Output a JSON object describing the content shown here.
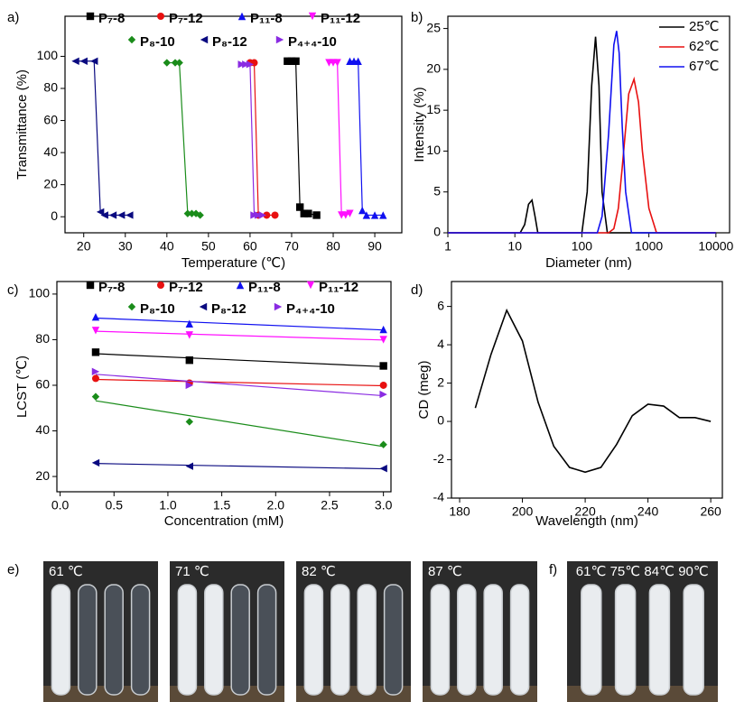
{
  "chart_data": [
    {
      "type": "line",
      "panel_label": "a)",
      "y_title": "Transmittance  (%)",
      "x_title": "Temperature (℃)",
      "xlim": [
        15.5,
        96.5
      ],
      "xticks": [
        20,
        30,
        40,
        50,
        60,
        70,
        80,
        90
      ],
      "ylim": [
        -10,
        125
      ],
      "yticks": [
        0,
        20,
        40,
        60,
        80,
        100
      ],
      "legend": "top",
      "series": [
        {
          "name": "P₇-8",
          "color": "#000000",
          "marker": "square",
          "x": [
            69,
            70,
            71,
            72,
            73,
            74,
            76
          ],
          "values": [
            97,
            97,
            97,
            6,
            2,
            2,
            1
          ]
        },
        {
          "name": "P₇-12",
          "color": "#e81010",
          "marker": "circle",
          "x": [
            60,
            61,
            62,
            64,
            66
          ],
          "values": [
            96,
            96,
            1,
            1,
            1
          ]
        },
        {
          "name": "P₁₁-8",
          "color": "#1010f0",
          "marker": "up",
          "x": [
            84,
            85,
            86,
            87,
            88,
            90,
            92
          ],
          "values": [
            97,
            97,
            97,
            4,
            1,
            1,
            1
          ]
        },
        {
          "name": "P₁₁-12",
          "color": "#ff10ff",
          "marker": "down",
          "x": [
            79,
            80,
            81,
            82,
            83,
            84
          ],
          "values": [
            96,
            96,
            96,
            1,
            1,
            2
          ]
        },
        {
          "name": "P₈-10",
          "color": "#1a8c1a",
          "marker": "diamond",
          "x": [
            40,
            42,
            43,
            45,
            46,
            47,
            48
          ],
          "values": [
            96,
            96,
            96,
            2,
            2,
            2,
            1
          ]
        },
        {
          "name": "P₈-12",
          "color": "#0a0a80",
          "marker": "left",
          "x": [
            18,
            20,
            22.5,
            24,
            25,
            27,
            29,
            31
          ],
          "values": [
            97,
            97,
            97,
            3,
            1,
            1,
            1,
            1
          ]
        },
        {
          "name": "P₄₊₄-10",
          "color": "#8a2be2",
          "marker": "right",
          "x": [
            58,
            59,
            60,
            61,
            62,
            63
          ],
          "values": [
            95,
            95,
            95,
            1,
            1,
            1
          ]
        }
      ]
    },
    {
      "type": "line",
      "panel_label": "b)",
      "y_title": "Intensity  (%)",
      "x_title": "Diameter (nm)",
      "xscale": "log",
      "xlim": [
        1,
        16000
      ],
      "xticks": [
        1,
        10,
        100,
        1000,
        10000
      ],
      "ylim": [
        0,
        26.5
      ],
      "yticks": [
        0,
        5,
        10,
        15,
        20,
        25
      ],
      "legend": "upper right",
      "series": [
        {
          "name": "25℃",
          "color": "#000000",
          "x": [
            1,
            12,
            14,
            16,
            18,
            20,
            22,
            100,
            120,
            140,
            160,
            180,
            200,
            240,
            1000,
            10000
          ],
          "values": [
            0,
            0,
            1,
            3.5,
            4,
            2,
            0,
            0,
            5,
            18,
            24,
            18,
            5,
            0,
            0,
            0
          ]
        },
        {
          "name": "62℃",
          "color": "#e81010",
          "x": [
            1,
            250,
            300,
            350,
            400,
            500,
            600,
            700,
            800,
            1000,
            1300,
            10000
          ],
          "values": [
            0,
            0,
            0.5,
            3,
            8,
            17,
            18.8,
            16,
            10,
            3,
            0,
            0
          ]
        },
        {
          "name": "67℃",
          "color": "#1010f0",
          "x": [
            1,
            170,
            200,
            250,
            300,
            330,
            360,
            400,
            450,
            550,
            10000
          ],
          "values": [
            0,
            0,
            2,
            12,
            23,
            24.7,
            22,
            13,
            5,
            0,
            0
          ]
        }
      ]
    },
    {
      "type": "scatter",
      "trendline": true,
      "panel_label": "c)",
      "y_title": "LCST  (℃)",
      "x_title": "Concentration (mM)",
      "x": [
        0.33,
        1.2,
        3.0
      ],
      "xlim": [
        -0.03,
        3.07
      ],
      "xticks": [
        {
          "value": 0,
          "label": "0.0"
        },
        0.5,
        {
          "value": 1,
          "label": "1.0"
        },
        1.5,
        {
          "value": 2,
          "label": "2.0"
        },
        2.5,
        {
          "value": 3,
          "label": "3.0"
        }
      ],
      "ylim": [
        13.3,
        105.5
      ],
      "yticks": [
        20,
        40,
        60,
        80,
        100
      ],
      "legend": "top",
      "series": [
        {
          "name": "P₇-8",
          "color": "#000000",
          "marker": "square",
          "values": [
            74.5,
            71,
            68.5
          ]
        },
        {
          "name": "P₇-12",
          "color": "#e81010",
          "marker": "circle",
          "values": [
            63,
            61,
            60
          ]
        },
        {
          "name": "P₁₁-8",
          "color": "#1010f0",
          "marker": "up",
          "values": [
            90,
            87,
            84.5
          ]
        },
        {
          "name": "P₁₁-12",
          "color": "#ff10ff",
          "marker": "down",
          "values": [
            84,
            82,
            80
          ]
        },
        {
          "name": "P₈-10",
          "color": "#1a8c1a",
          "marker": "diamond",
          "values": [
            55,
            44,
            34
          ]
        },
        {
          "name": "P₈-12",
          "color": "#0a0a80",
          "marker": "left",
          "values": [
            26,
            24.5,
            23.5
          ]
        },
        {
          "name": "P₄₊₄-10",
          "color": "#8a2be2",
          "marker": "right",
          "values": [
            66,
            60,
            56
          ]
        }
      ]
    },
    {
      "type": "line",
      "panel_label": "d)",
      "y_title": "CD  (meg)",
      "x_title": "Wavelength (nm)",
      "x": [
        185,
        190,
        195,
        200,
        205,
        210,
        215,
        220,
        225,
        230,
        235,
        240,
        245,
        250,
        255,
        260
      ],
      "values": [
        0.7,
        3.5,
        5.8,
        4.2,
        1.0,
        -1.3,
        -2.4,
        -2.65,
        -2.4,
        -1.2,
        0.3,
        0.9,
        0.8,
        0.2,
        0.2,
        0.0
      ],
      "color": "#000000",
      "xlim": [
        177.4,
        263.7
      ],
      "xticks": [
        180,
        200,
        220,
        240,
        260
      ],
      "ylim": [
        -4,
        7.3
      ],
      "yticks": [
        -4,
        -2,
        0,
        2,
        4,
        6
      ]
    }
  ],
  "photo_panels": [
    {
      "label": "e)",
      "captions": [
        "61 ℃",
        "71 ℃",
        "82 ℃",
        "87 ℃"
      ]
    },
    {
      "label": "f)",
      "captions": [
        "61℃",
        "75℃",
        "84℃",
        "90℃"
      ]
    }
  ]
}
